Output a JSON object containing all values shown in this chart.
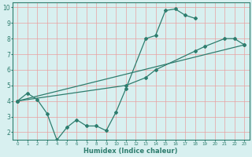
{
  "line1_x": [
    0,
    1,
    2,
    3,
    4,
    5,
    6,
    7,
    8,
    9,
    10,
    11,
    13,
    14,
    15,
    16,
    17,
    18
  ],
  "line1_y": [
    4.0,
    4.5,
    4.1,
    3.2,
    1.5,
    2.3,
    2.8,
    2.4,
    2.4,
    2.1,
    3.3,
    4.8,
    8.0,
    8.2,
    9.8,
    9.9,
    9.5,
    9.3
  ],
  "line2_x": [
    0,
    23
  ],
  "line2_y": [
    4.0,
    7.6
  ],
  "line3_x": [
    0,
    11,
    13,
    14,
    18,
    19,
    21,
    22,
    23
  ],
  "line3_y": [
    4.0,
    5.0,
    5.5,
    6.0,
    7.2,
    7.5,
    8.0,
    8.0,
    7.6
  ],
  "color": "#2e7d6e",
  "bg_color": "#d8f0f0",
  "grid_color": "#e8a0a0",
  "xlabel": "Humidex (Indice chaleur)",
  "xlim": [
    -0.5,
    23.5
  ],
  "ylim": [
    1.5,
    10.3
  ],
  "yticks": [
    2,
    3,
    4,
    5,
    6,
    7,
    8,
    9,
    10
  ],
  "xticks": [
    0,
    1,
    2,
    3,
    4,
    5,
    6,
    7,
    8,
    9,
    10,
    11,
    12,
    13,
    14,
    15,
    16,
    17,
    18,
    19,
    20,
    21,
    22,
    23
  ]
}
